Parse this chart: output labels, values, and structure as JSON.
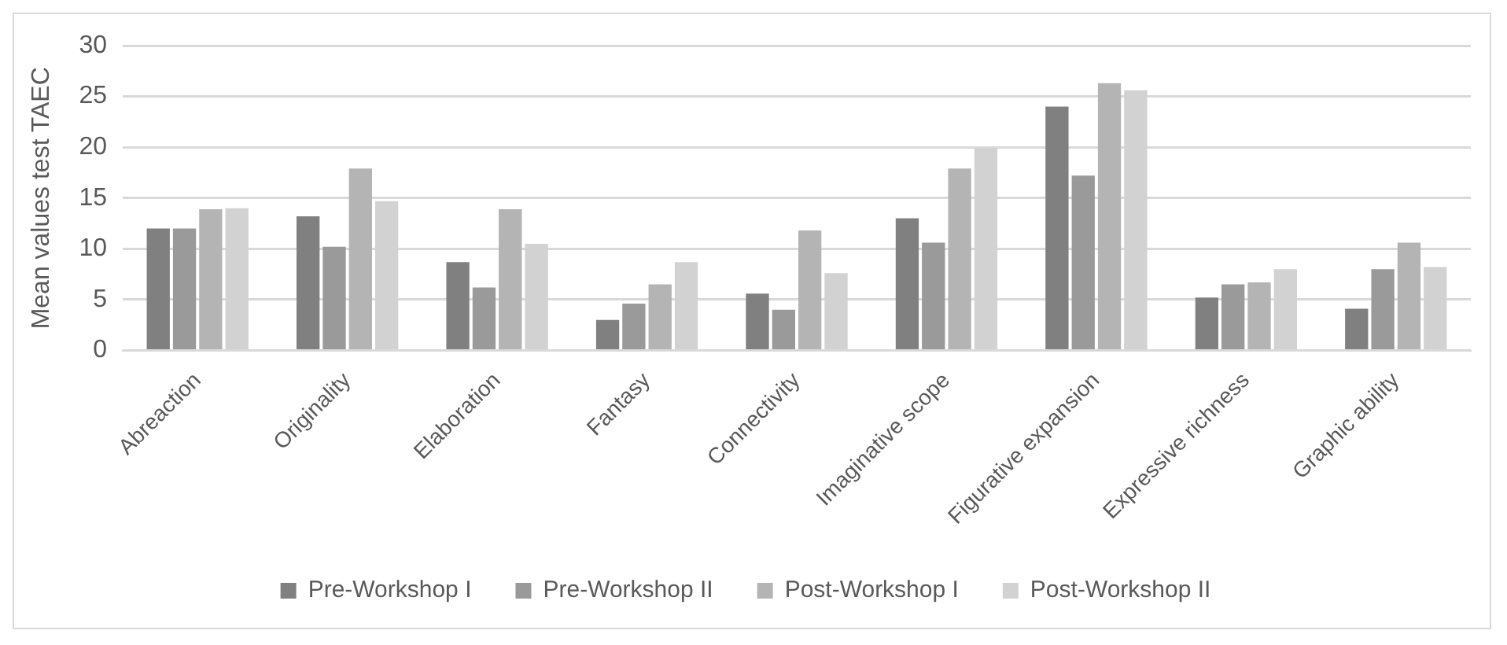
{
  "chart_data": {
    "type": "bar",
    "ylabel": "Mean values test TAEC",
    "categories": [
      "Abreaction",
      "Originality",
      "Elaboration",
      "Fantasy",
      "Connectivity",
      "Imaginative scope",
      "Figurative expansion",
      "Expressive richness",
      "Graphic ability"
    ],
    "series": [
      {
        "name": "Pre-Workshop I",
        "color": "#808080",
        "values": [
          12.0,
          13.2,
          8.7,
          3.0,
          5.6,
          13.0,
          24.0,
          5.2,
          4.1
        ]
      },
      {
        "name": "Pre-Workshop II",
        "color": "#9a9a9a",
        "values": [
          12.0,
          10.2,
          6.2,
          4.6,
          4.0,
          10.6,
          17.2,
          6.5,
          8.0
        ]
      },
      {
        "name": "Post-Workshop I",
        "color": "#b4b4b4",
        "values": [
          13.9,
          17.9,
          13.9,
          6.5,
          11.8,
          17.9,
          26.3,
          6.7,
          10.6
        ]
      },
      {
        "name": "Post-Workshop II",
        "color": "#d2d2d2",
        "values": [
          14.0,
          14.7,
          10.5,
          8.7,
          7.6,
          19.9,
          25.6,
          8.0,
          8.2
        ]
      }
    ],
    "ylim": [
      0,
      30
    ],
    "yticks": [
      0,
      5,
      10,
      15,
      20,
      25,
      30
    ],
    "grid": "y",
    "legend": "bottom"
  }
}
